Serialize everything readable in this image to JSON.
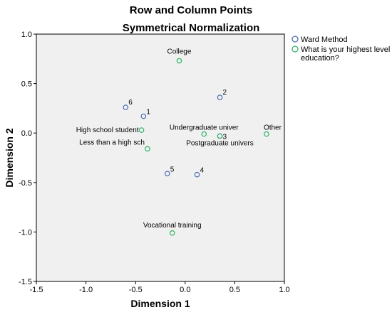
{
  "chart_data": {
    "type": "scatter",
    "title": "Row and Column Points",
    "subtitle": "Symmetrical Normalization",
    "xlabel": "Dimension 1",
    "ylabel": "Dimension 2",
    "xlim": [
      -1.5,
      1.0
    ],
    "ylim": [
      -1.5,
      1.0
    ],
    "xticks": [
      "-1.5",
      "-1.0",
      "-0.5",
      "0.0",
      "0.5",
      "1.0"
    ],
    "yticks": [
      "1.0",
      "0.5",
      "0.0",
      "-0.5",
      "-1.0",
      "-1.5"
    ],
    "xtick_values": [
      -1.5,
      -1.0,
      -0.5,
      0.0,
      0.5,
      1.0
    ],
    "ytick_values": [
      1.0,
      0.5,
      0.0,
      -0.5,
      -1.0,
      -1.5
    ],
    "grid": false,
    "legend_position": "top-right outside",
    "series": [
      {
        "name": "Ward Method",
        "color": "#4a6db5",
        "points": [
          {
            "label": "1",
            "x": -0.42,
            "y": 0.17
          },
          {
            "label": "2",
            "x": 0.35,
            "y": 0.36
          },
          {
            "label": "3",
            "x": 0.35,
            "y": -0.03
          },
          {
            "label": "4",
            "x": 0.12,
            "y": -0.42
          },
          {
            "label": "5",
            "x": -0.18,
            "y": -0.41
          },
          {
            "label": "6",
            "x": -0.6,
            "y": 0.26
          }
        ]
      },
      {
        "name": "What is your highest level of education?",
        "legend_lines": [
          "What is your highest level of",
          "education?"
        ],
        "color": "#2fb566",
        "points": [
          {
            "label": "College",
            "x": -0.06,
            "y": 0.73
          },
          {
            "label": "High school student",
            "x": -0.44,
            "y": 0.03
          },
          {
            "label": "Less than a high sch",
            "x": -0.38,
            "y": -0.16
          },
          {
            "label": "Undergraduate univer",
            "x": 0.19,
            "y": -0.01
          },
          {
            "label": "Postgraduate univers",
            "x": 0.35,
            "y": -0.03
          },
          {
            "label": "Other",
            "x": 0.82,
            "y": -0.01
          },
          {
            "label": "Vocational training",
            "x": -0.13,
            "y": -1.01
          }
        ]
      }
    ]
  }
}
